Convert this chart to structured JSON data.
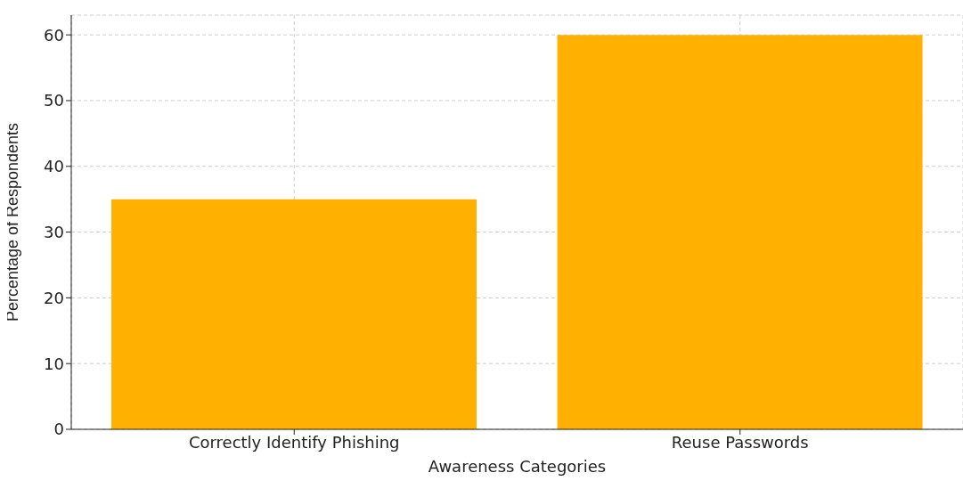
{
  "chart_data": {
    "type": "bar",
    "xlabel": "Awareness Categories",
    "ylabel": "Percentage of Respondents",
    "categories": [
      "Correctly Identify Phishing",
      "Reuse Passwords"
    ],
    "values": [
      35,
      60
    ],
    "color": "#ffb000",
    "ylim": [
      0,
      63
    ],
    "yticks": [
      0,
      10,
      20,
      30,
      40,
      50,
      60
    ],
    "grid": true
  }
}
